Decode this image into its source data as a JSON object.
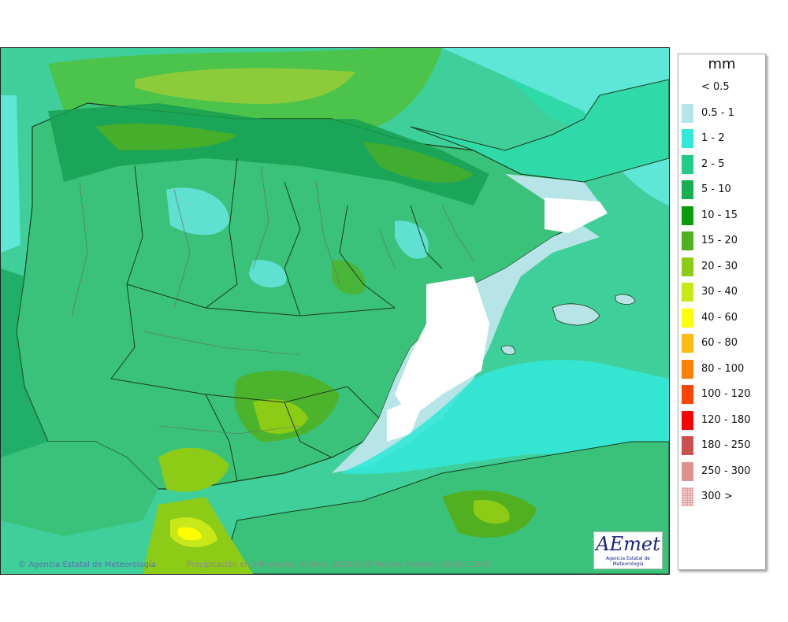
{
  "legend": {
    "title": "mm",
    "items": [
      {
        "label": "< 0.5",
        "color": "#ffffff"
      },
      {
        "label": "0.5 - 1",
        "color": "#b7e4e6"
      },
      {
        "label": "1 - 2",
        "color": "#33e8d8"
      },
      {
        "label": "2 - 5",
        "color": "#22cc88"
      },
      {
        "label": "5 - 10",
        "color": "#16b052"
      },
      {
        "label": "10 - 15",
        "color": "#0a9a0a"
      },
      {
        "label": "15 - 20",
        "color": "#50b020"
      },
      {
        "label": "20 - 30",
        "color": "#8ccc16"
      },
      {
        "label": "30 - 40",
        "color": "#c8e81a"
      },
      {
        "label": "40 - 60",
        "color": "#ffff00"
      },
      {
        "label": "60 - 80",
        "color": "#ffbb10"
      },
      {
        "label": "80 - 100",
        "color": "#ff8000"
      },
      {
        "label": "100 - 120",
        "color": "#ff4400"
      },
      {
        "label": "120 - 180",
        "color": "#ff0000"
      },
      {
        "label": "180 - 250",
        "color": "#cc5050"
      },
      {
        "label": "250 - 300",
        "color": "#e09090"
      },
      {
        "label": "300 >",
        "color": "#f2caca"
      }
    ]
  },
  "map": {
    "credit": "Agencia Estatal de Meteorología",
    "caption": "Precipitación en 24h media. Validez: 20260125 Pasado modelo: 2026012300"
  },
  "logo": {
    "mark": "AEmet",
    "subtitle": "Agencia Estatal de Meteorología"
  }
}
